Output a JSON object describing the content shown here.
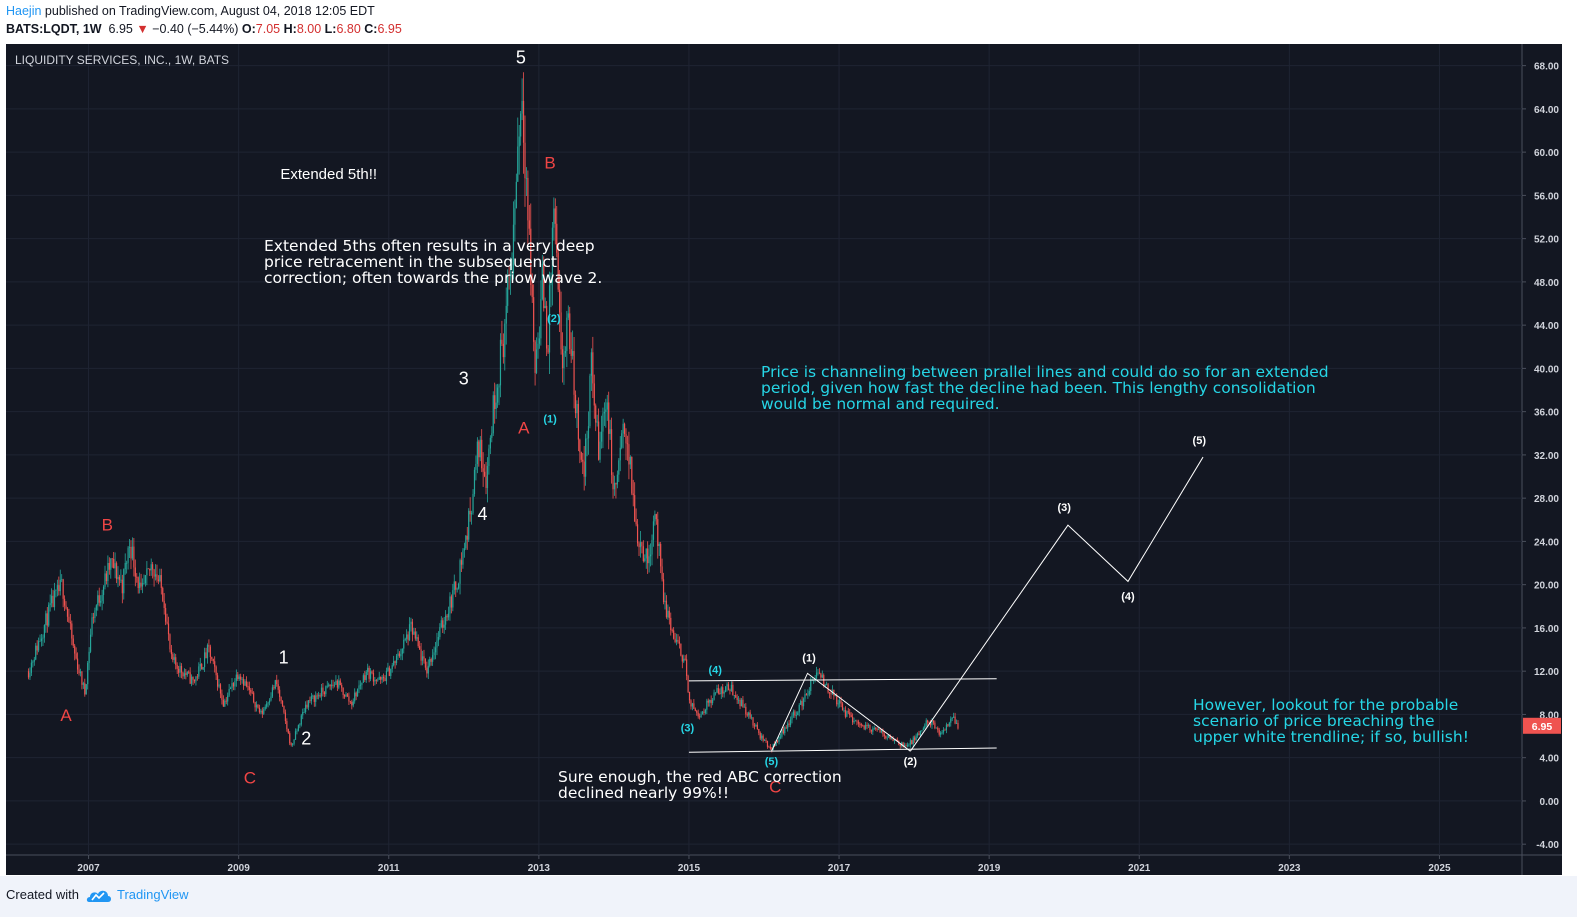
{
  "header": {
    "author": "Haejin",
    "published_text": " published on TradingView.com, August 04, 2018 12:05 EDT",
    "symbol": "BATS:LQDT, 1W",
    "last": "6.95",
    "change": "−0.40 (−5.44%)",
    "o_label": "O:",
    "o_value": "7.05",
    "h_label": "H:",
    "h_value": "8.00",
    "l_label": "L:",
    "l_value": "6.80",
    "c_label": "C:",
    "c_value": "6.95"
  },
  "footer": {
    "created_with": "Created with",
    "brand": "TradingView"
  },
  "chart_data": {
    "type": "candlestick",
    "title": "LIQUIDITY SERVICES, INC., 1W, BATS",
    "x_axis": {
      "type": "time",
      "range": [
        2005.9,
        2026.1
      ],
      "ticks": [
        "2007",
        "2009",
        "2011",
        "2013",
        "2015",
        "2017",
        "2019",
        "2021",
        "2023",
        "2025"
      ]
    },
    "y_axis": {
      "position": "right",
      "range": [
        -5,
        70
      ],
      "ticks": [
        "-4.00",
        "0.00",
        "4.00",
        "8.00",
        "12.00",
        "16.00",
        "20.00",
        "24.00",
        "28.00",
        "32.00",
        "36.00",
        "40.00",
        "44.00",
        "48.00",
        "52.00",
        "56.00",
        "60.00",
        "64.00",
        "68.00"
      ]
    },
    "last_price": {
      "label": "6.95",
      "value": 6.95,
      "color": "#ef5350"
    },
    "colors": {
      "background": "#131722",
      "up": "#26a69a",
      "down": "#ef5350",
      "grid": "#1f2433",
      "annotation_white": "#ffffff",
      "annotation_red": "#f04545",
      "annotation_cyan": "#26d6e6"
    },
    "price_path": [
      [
        2006.2,
        12
      ],
      [
        2006.5,
        18
      ],
      [
        2006.65,
        20
      ],
      [
        2006.8,
        14
      ],
      [
        2006.95,
        10
      ],
      [
        2007.05,
        17
      ],
      [
        2007.3,
        22
      ],
      [
        2007.45,
        20
      ],
      [
        2007.55,
        24
      ],
      [
        2007.7,
        19
      ],
      [
        2007.85,
        22
      ],
      [
        2008.0,
        19
      ],
      [
        2008.1,
        13
      ],
      [
        2008.4,
        11
      ],
      [
        2008.6,
        14
      ],
      [
        2008.8,
        9
      ],
      [
        2009.0,
        12
      ],
      [
        2009.3,
        8
      ],
      [
        2009.5,
        11
      ],
      [
        2009.7,
        5
      ],
      [
        2009.9,
        9
      ],
      [
        2010.1,
        10
      ],
      [
        2010.3,
        11
      ],
      [
        2010.5,
        9
      ],
      [
        2010.7,
        12
      ],
      [
        2010.9,
        11
      ],
      [
        2011.1,
        13
      ],
      [
        2011.3,
        16
      ],
      [
        2011.5,
        12
      ],
      [
        2011.7,
        16
      ],
      [
        2011.9,
        20
      ],
      [
        2012.05,
        25
      ],
      [
        2012.2,
        33
      ],
      [
        2012.3,
        30
      ],
      [
        2012.4,
        37
      ],
      [
        2012.55,
        44
      ],
      [
        2012.65,
        51
      ],
      [
        2012.72,
        61
      ],
      [
        2012.78,
        66
      ],
      [
        2012.85,
        55
      ],
      [
        2012.95,
        40
      ],
      [
        2013.05,
        48
      ],
      [
        2013.12,
        42
      ],
      [
        2013.2,
        55
      ],
      [
        2013.3,
        40
      ],
      [
        2013.4,
        44
      ],
      [
        2013.5,
        36
      ],
      [
        2013.6,
        30
      ],
      [
        2013.7,
        40
      ],
      [
        2013.8,
        32
      ],
      [
        2013.9,
        38
      ],
      [
        2014.0,
        28
      ],
      [
        2014.15,
        35
      ],
      [
        2014.3,
        25
      ],
      [
        2014.45,
        22
      ],
      [
        2014.55,
        27
      ],
      [
        2014.65,
        19
      ],
      [
        2014.8,
        15
      ],
      [
        2014.95,
        13
      ],
      [
        2015.0,
        9
      ],
      [
        2015.15,
        8
      ],
      [
        2015.35,
        10
      ],
      [
        2015.55,
        10.5
      ],
      [
        2015.75,
        8.5
      ],
      [
        2015.95,
        6
      ],
      [
        2016.1,
        4.8
      ],
      [
        2016.3,
        7
      ],
      [
        2016.5,
        9
      ],
      [
        2016.7,
        11.8
      ],
      [
        2016.9,
        10
      ],
      [
        2017.1,
        8
      ],
      [
        2017.3,
        7
      ],
      [
        2017.5,
        6.5
      ],
      [
        2017.7,
        5.8
      ],
      [
        2017.9,
        5
      ],
      [
        2018.05,
        6
      ],
      [
        2018.2,
        7.5
      ],
      [
        2018.35,
        6
      ],
      [
        2018.5,
        7.8
      ],
      [
        2018.59,
        6.95
      ]
    ],
    "trendlines": [
      {
        "from": [
          2015.0,
          11.1
        ],
        "to": [
          2019.1,
          11.3
        ]
      },
      {
        "from": [
          2015.0,
          4.5
        ],
        "to": [
          2019.1,
          4.9
        ]
      }
    ],
    "wave_path": [
      [
        2016.1,
        4.6
      ],
      [
        2016.58,
        11.8
      ],
      [
        2017.95,
        4.6
      ]
    ],
    "projection_path": [
      [
        2017.95,
        4.6
      ],
      [
        2020.05,
        25.5
      ],
      [
        2020.85,
        20.3
      ],
      [
        2021.85,
        31.8
      ]
    ],
    "annotations": [
      {
        "text": "5",
        "color": "white",
        "x": 2012.76,
        "y": 68.2,
        "size": 18
      },
      {
        "text": "B",
        "color": "red",
        "x": 2013.15,
        "y": 58.5,
        "size": 17
      },
      {
        "text": "Extended 5th!!",
        "color": "white",
        "x": 2010.2,
        "y": 57.5,
        "size": 15
      },
      {
        "text": "3",
        "color": "white",
        "x": 2012.0,
        "y": 38.5,
        "size": 18
      },
      {
        "text": "A",
        "color": "red",
        "x": 2012.8,
        "y": 34.0,
        "size": 17
      },
      {
        "text": "(2)",
        "color": "cyan",
        "x": 2013.2,
        "y": 44.3,
        "size": 11
      },
      {
        "text": "(1)",
        "color": "cyan",
        "x": 2013.15,
        "y": 35.0,
        "size": 11
      },
      {
        "text": "4",
        "color": "white",
        "x": 2012.25,
        "y": 26.0,
        "size": 18
      },
      {
        "text": "B",
        "color": "red",
        "x": 2007.25,
        "y": 25.0,
        "size": 17
      },
      {
        "text": "A",
        "color": "red",
        "x": 2006.7,
        "y": 7.4,
        "size": 17
      },
      {
        "text": "1",
        "color": "white",
        "x": 2009.6,
        "y": 12.7,
        "size": 18
      },
      {
        "text": "2",
        "color": "white",
        "x": 2009.9,
        "y": 5.2,
        "size": 18
      },
      {
        "text": "C",
        "color": "red",
        "x": 2009.15,
        "y": 1.6,
        "size": 17
      },
      {
        "text": "(4)",
        "color": "cyan",
        "x": 2015.35,
        "y": 11.8,
        "size": 11
      },
      {
        "text": "(3)",
        "color": "cyan",
        "x": 2014.98,
        "y": 6.4,
        "size": 11
      },
      {
        "text": "(5)",
        "color": "cyan",
        "x": 2016.1,
        "y": 3.3,
        "size": 11
      },
      {
        "text": "C",
        "color": "red",
        "x": 2016.15,
        "y": 0.8,
        "size": 17
      },
      {
        "text": "(1)",
        "color": "white",
        "x": 2016.6,
        "y": 12.9,
        "size": 11
      },
      {
        "text": "(2)",
        "color": "white",
        "x": 2017.95,
        "y": 3.3,
        "size": 11
      },
      {
        "text": "(3)",
        "color": "white",
        "x": 2020.0,
        "y": 26.8,
        "size": 11
      },
      {
        "text": "(4)",
        "color": "white",
        "x": 2020.85,
        "y": 18.6,
        "size": 11
      },
      {
        "text": "(5)",
        "color": "white",
        "x": 2021.8,
        "y": 33.0,
        "size": 11
      }
    ]
  },
  "notes": {
    "extended_5ths": "Extended 5ths often results in a very deep\nprice retracement in the subsequenct\ncorrection; often towards the priow wave 2.",
    "channeling": "Price is channeling between prallel lines and could do so for an extended\nperiod, given how fast the decline had been. This lengthy consolidation\nwould be normal and required.",
    "sure_enough": "Sure enough, the red ABC correction\ndeclined nearly 99%!!",
    "however": "However, lookout for the probable\nscenario of price breaching the\nupper white trendline; if so, bullish!"
  }
}
